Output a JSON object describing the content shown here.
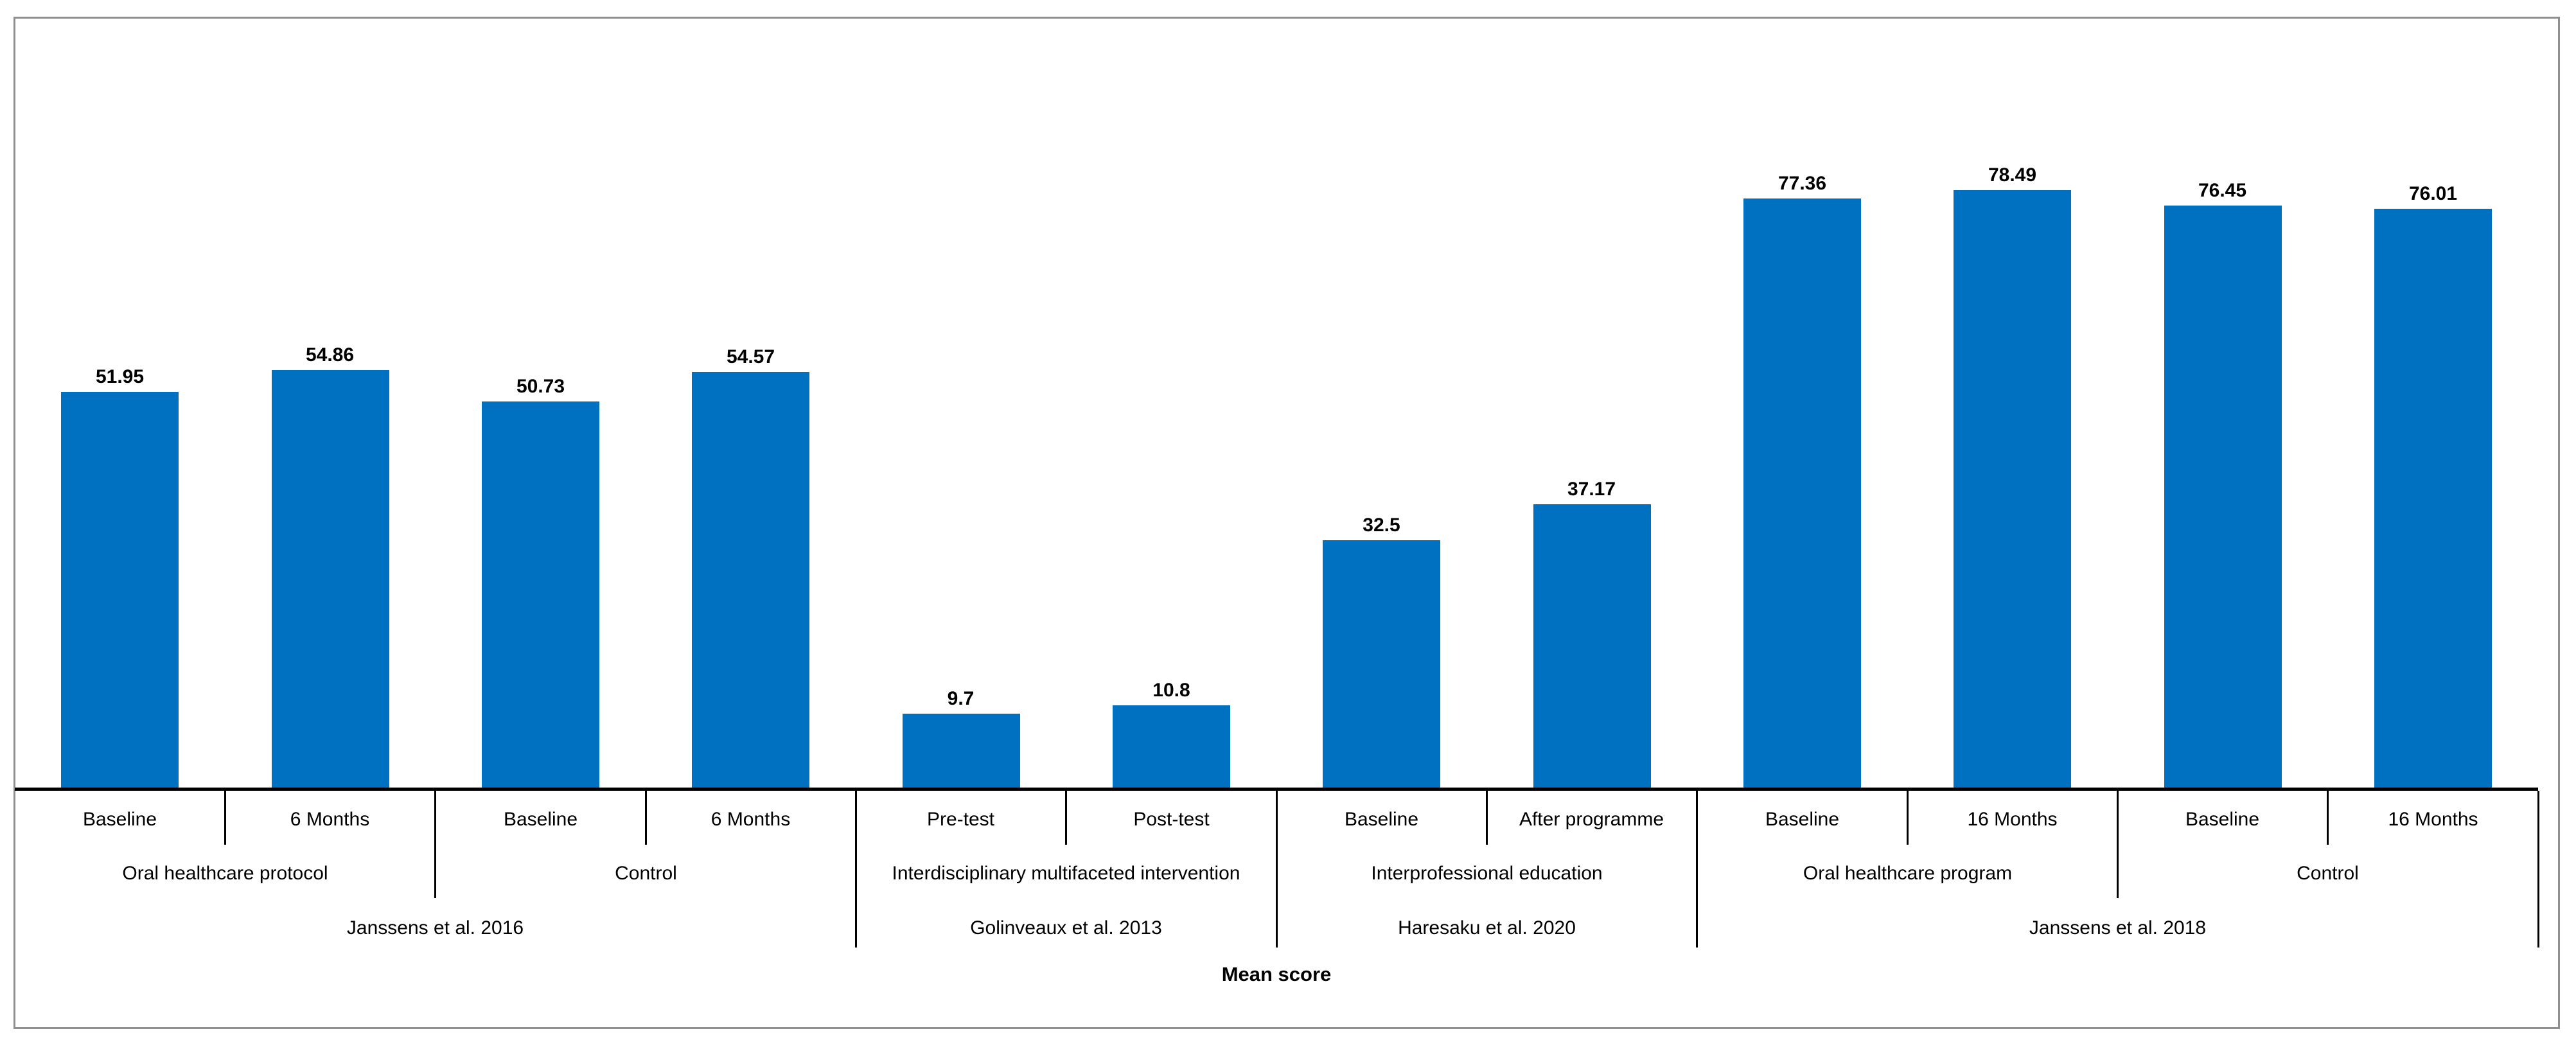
{
  "chart_data": {
    "type": "bar",
    "title": "",
    "xlabel": "Mean score",
    "ylabel": "",
    "ylim": [
      0,
      101
    ],
    "grid": false,
    "legend": false,
    "bar_color": "#0070C0",
    "axis_color": "#000000",
    "border_color": "#8f8f8f",
    "value_labels_shown": true,
    "studies": [
      {
        "name": "Janssens et al. 2016",
        "groups": [
          {
            "name": "Oral healthcare protocol",
            "points": [
              {
                "label": "Baseline",
                "value": 51.95
              },
              {
                "label": "6 Months",
                "value": 54.86
              }
            ]
          },
          {
            "name": "Control",
            "points": [
              {
                "label": "Baseline",
                "value": 50.73
              },
              {
                "label": "6 Months",
                "value": 54.57
              }
            ]
          }
        ]
      },
      {
        "name": "Golinveaux et al. 2013",
        "groups": [
          {
            "name": "Interdisciplinary multifaceted intervention",
            "points": [
              {
                "label": "Pre-test",
                "value": 9.7
              },
              {
                "label": "Post-test",
                "value": 10.8
              }
            ]
          }
        ]
      },
      {
        "name": "Haresaku et al. 2020",
        "groups": [
          {
            "name": "Interprofessional education",
            "points": [
              {
                "label": "Baseline",
                "value": 32.5
              },
              {
                "label": "After programme",
                "value": 37.17
              }
            ]
          }
        ]
      },
      {
        "name": "Janssens et al. 2018",
        "groups": [
          {
            "name": "Oral healthcare program",
            "points": [
              {
                "label": "Baseline",
                "value": 77.36
              },
              {
                "label": "16 Months",
                "value": 78.49
              }
            ]
          },
          {
            "name": "Control",
            "points": [
              {
                "label": "Baseline",
                "value": 76.45
              },
              {
                "label": "16 Months",
                "value": 76.01
              }
            ]
          }
        ]
      }
    ]
  }
}
